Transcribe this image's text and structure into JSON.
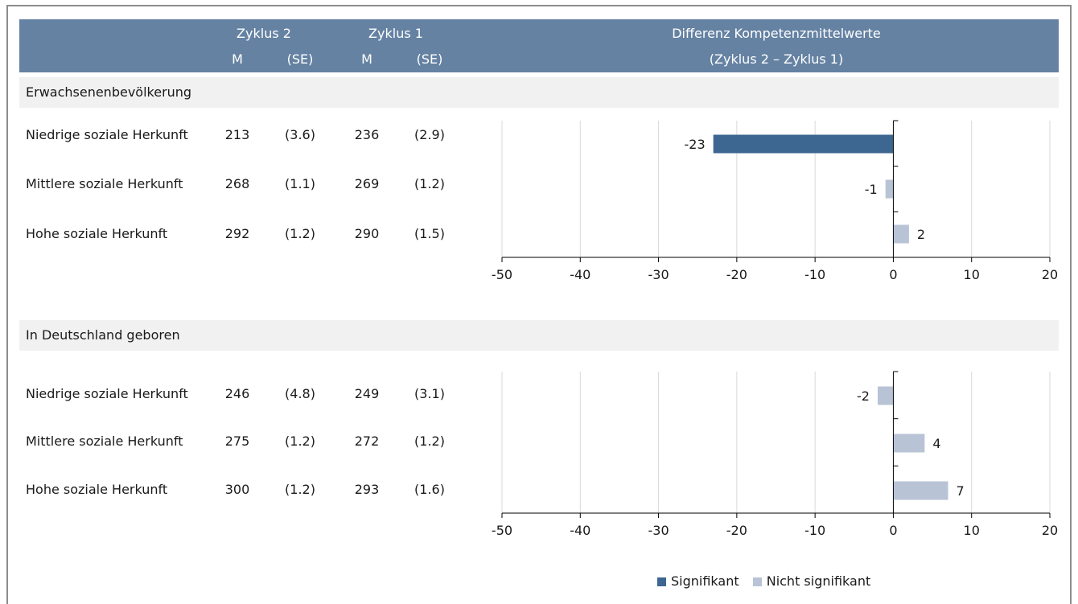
{
  "header": {
    "zyklus2": "Zyklus 2",
    "zyklus1": "Zyklus 1",
    "m": "M",
    "se": "(SE)",
    "diff_line1": "Differenz Kompetenzmittelwerte",
    "diff_line2": "(Zyklus 2 – Zyklus 1)"
  },
  "sections": [
    {
      "title": "Erwachsenenbevölkerung",
      "rows": [
        {
          "label": "Niedrige soziale Herkunft",
          "m2": "213",
          "se2": "(3.6)",
          "m1": "236",
          "se1": "(2.9)"
        },
        {
          "label": "Mittlere soziale Herkunft",
          "m2": "268",
          "se2": "(1.1)",
          "m1": "269",
          "se1": "(1.2)"
        },
        {
          "label": "Hohe soziale Herkunft",
          "m2": "292",
          "se2": "(1.2)",
          "m1": "290",
          "se1": "(1.5)"
        }
      ]
    },
    {
      "title": "In Deutschland geboren",
      "rows": [
        {
          "label": "Niedrige soziale Herkunft",
          "m2": "246",
          "se2": "(4.8)",
          "m1": "249",
          "se1": "(3.1)"
        },
        {
          "label": "Mittlere soziale Herkunft",
          "m2": "275",
          "se2": "(1.2)",
          "m1": "272",
          "se1": "(1.2)"
        },
        {
          "label": "Hohe soziale Herkunft",
          "m2": "300",
          "se2": "(1.2)",
          "m1": "293",
          "se1": "(1.6)"
        }
      ]
    }
  ],
  "legend": {
    "significant": "Signifikant",
    "not_significant": "Nicht signifikant"
  },
  "colors": {
    "header_bg": "#6582a3",
    "significant": "#3d6791",
    "not_significant": "#b8c4d6",
    "section_bg": "#f1f1f1"
  },
  "chart_data": [
    {
      "type": "bar",
      "orientation": "horizontal",
      "categories": [
        "Niedrige soziale Herkunft",
        "Mittlere soziale Herkunft",
        "Hohe soziale Herkunft"
      ],
      "values": [
        -23,
        -1,
        2
      ],
      "value_labels": [
        "-23",
        "-1",
        "2"
      ],
      "significant": [
        true,
        false,
        false
      ],
      "xlim": [
        -50,
        20
      ],
      "ticks": [
        -50,
        -40,
        -30,
        -20,
        -10,
        0,
        10,
        20
      ],
      "tick_labels": [
        "-50",
        "-40",
        "-30",
        "-20",
        "-10",
        "0",
        "10",
        "20"
      ],
      "grid": true
    },
    {
      "type": "bar",
      "orientation": "horizontal",
      "categories": [
        "Niedrige soziale Herkunft",
        "Mittlere soziale Herkunft",
        "Hohe soziale Herkunft"
      ],
      "values": [
        -2,
        4,
        7
      ],
      "value_labels": [
        "-2",
        "4",
        "7"
      ],
      "significant": [
        false,
        false,
        false
      ],
      "xlim": [
        -50,
        20
      ],
      "ticks": [
        -50,
        -40,
        -30,
        -20,
        -10,
        0,
        10,
        20
      ],
      "tick_labels": [
        "-50",
        "-40",
        "-30",
        "-20",
        "-10",
        "0",
        "10",
        "20"
      ],
      "grid": true
    }
  ]
}
